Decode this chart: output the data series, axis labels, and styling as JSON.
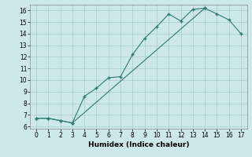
{
  "xlabel": "Humidex (Indice chaleur)",
  "line1_x": [
    0,
    1,
    2,
    3,
    4,
    5,
    6,
    7,
    8,
    9,
    10,
    11,
    12,
    13,
    14
  ],
  "line1_y": [
    6.7,
    6.7,
    6.5,
    6.3,
    8.6,
    9.3,
    10.2,
    10.3,
    12.2,
    13.6,
    14.6,
    15.7,
    15.1,
    16.1,
    16.2
  ],
  "line2_x": [
    0,
    1,
    2,
    3,
    14,
    15,
    16,
    17
  ],
  "line2_y": [
    6.7,
    6.7,
    6.5,
    6.3,
    16.2,
    15.7,
    15.2,
    14.0
  ],
  "color": "#2d7b6e",
  "background_color": "#cce8e8",
  "grid_color": "#aacaca",
  "xlim": [
    -0.5,
    17.5
  ],
  "ylim": [
    5.8,
    16.5
  ],
  "xticks": [
    0,
    1,
    2,
    3,
    4,
    5,
    6,
    7,
    8,
    9,
    10,
    11,
    12,
    13,
    14,
    15,
    16,
    17
  ],
  "yticks": [
    6,
    7,
    8,
    9,
    10,
    11,
    12,
    13,
    14,
    15,
    16
  ],
  "marker": "+"
}
